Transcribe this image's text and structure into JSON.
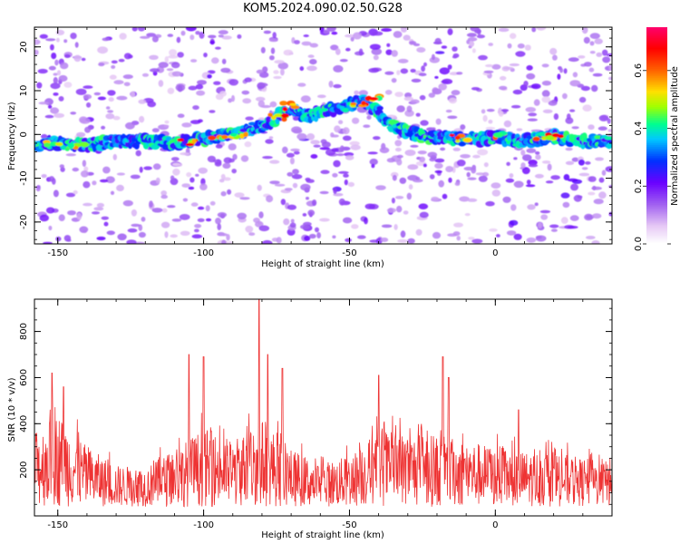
{
  "figure": {
    "title": "KOM5.2024.090.02.50.G28"
  },
  "chart_data": [
    {
      "type": "heatmap",
      "xlabel": "Height of straight line (km)",
      "ylabel": "Frequency (Hz)",
      "xlim": [
        -158,
        40
      ],
      "ylim": [
        -25,
        24.5
      ],
      "xticks": [
        -150,
        -100,
        -50,
        0
      ],
      "yticks": [
        -20,
        -10,
        0,
        10,
        20
      ],
      "colorbar": {
        "label": "Normalized spectral amplitude",
        "range": [
          0,
          0.75
        ],
        "ticks": [
          0.0,
          0.2,
          0.4,
          0.6
        ]
      },
      "ridge": [
        [
          -158,
          -2.5
        ],
        [
          -150,
          -2.0
        ],
        [
          -140,
          -2.5
        ],
        [
          -130,
          -1.5
        ],
        [
          -120,
          -1.5
        ],
        [
          -110,
          -2.0
        ],
        [
          -100,
          -1.0
        ],
        [
          -90,
          0.0
        ],
        [
          -80,
          2.0
        ],
        [
          -70,
          6.0
        ],
        [
          -65,
          4.0
        ],
        [
          -55,
          6.0
        ],
        [
          -45,
          7.5
        ],
        [
          -40,
          5.0
        ],
        [
          -35,
          2.0
        ],
        [
          -25,
          -0.5
        ],
        [
          -15,
          -1.0
        ],
        [
          -5,
          -1.0
        ],
        [
          0,
          -0.5
        ],
        [
          10,
          -1.5
        ],
        [
          20,
          -0.5
        ],
        [
          30,
          -1.5
        ],
        [
          40,
          -1.5
        ]
      ],
      "peaks": [
        [
          -152,
          -2.3
        ],
        [
          -143,
          -2.3
        ],
        [
          -105,
          -1.8
        ],
        [
          -95,
          -1.0
        ],
        [
          -88,
          -0.3
        ],
        [
          -75,
          4.0
        ],
        [
          -70,
          6.5
        ],
        [
          -47,
          7.0
        ],
        [
          -42,
          8.5
        ],
        [
          -12,
          -0.8
        ],
        [
          2,
          0.0
        ],
        [
          17,
          -0.6
        ],
        [
          21,
          -0.6
        ]
      ]
    },
    {
      "type": "line",
      "xlabel": "Height of straight line (km)",
      "ylabel": "SNR (10 * v/v)",
      "xlim": [
        -158,
        40
      ],
      "ylim": [
        0,
        940
      ],
      "xticks": [
        -150,
        -100,
        -50,
        0
      ],
      "yticks": [
        200,
        400,
        600,
        800
      ],
      "series": [
        {
          "color": "#ee3333",
          "envelope": [
            [
              -158,
              360
            ],
            [
              -150,
              450
            ],
            [
              -140,
              300
            ],
            [
              -130,
              220
            ],
            [
              -120,
              210
            ],
            [
              -110,
              290
            ],
            [
              -100,
              380
            ],
            [
              -90,
              330
            ],
            [
              -80,
              420
            ],
            [
              -70,
              290
            ],
            [
              -60,
              230
            ],
            [
              -50,
              260
            ],
            [
              -40,
              380
            ],
            [
              -30,
              360
            ],
            [
              -20,
              350
            ],
            [
              -10,
              330
            ],
            [
              0,
              300
            ],
            [
              10,
              280
            ],
            [
              20,
              280
            ],
            [
              30,
              250
            ],
            [
              40,
              240
            ]
          ],
          "spikes": [
            [
              -152,
              620
            ],
            [
              -148,
              560
            ],
            [
              -105,
              700
            ],
            [
              -100,
              690
            ],
            [
              -81,
              940
            ],
            [
              -78,
              700
            ],
            [
              -73,
              640
            ],
            [
              -40,
              610
            ],
            [
              -18,
              690
            ],
            [
              -16,
              600
            ],
            [
              8,
              460
            ]
          ]
        }
      ]
    }
  ]
}
